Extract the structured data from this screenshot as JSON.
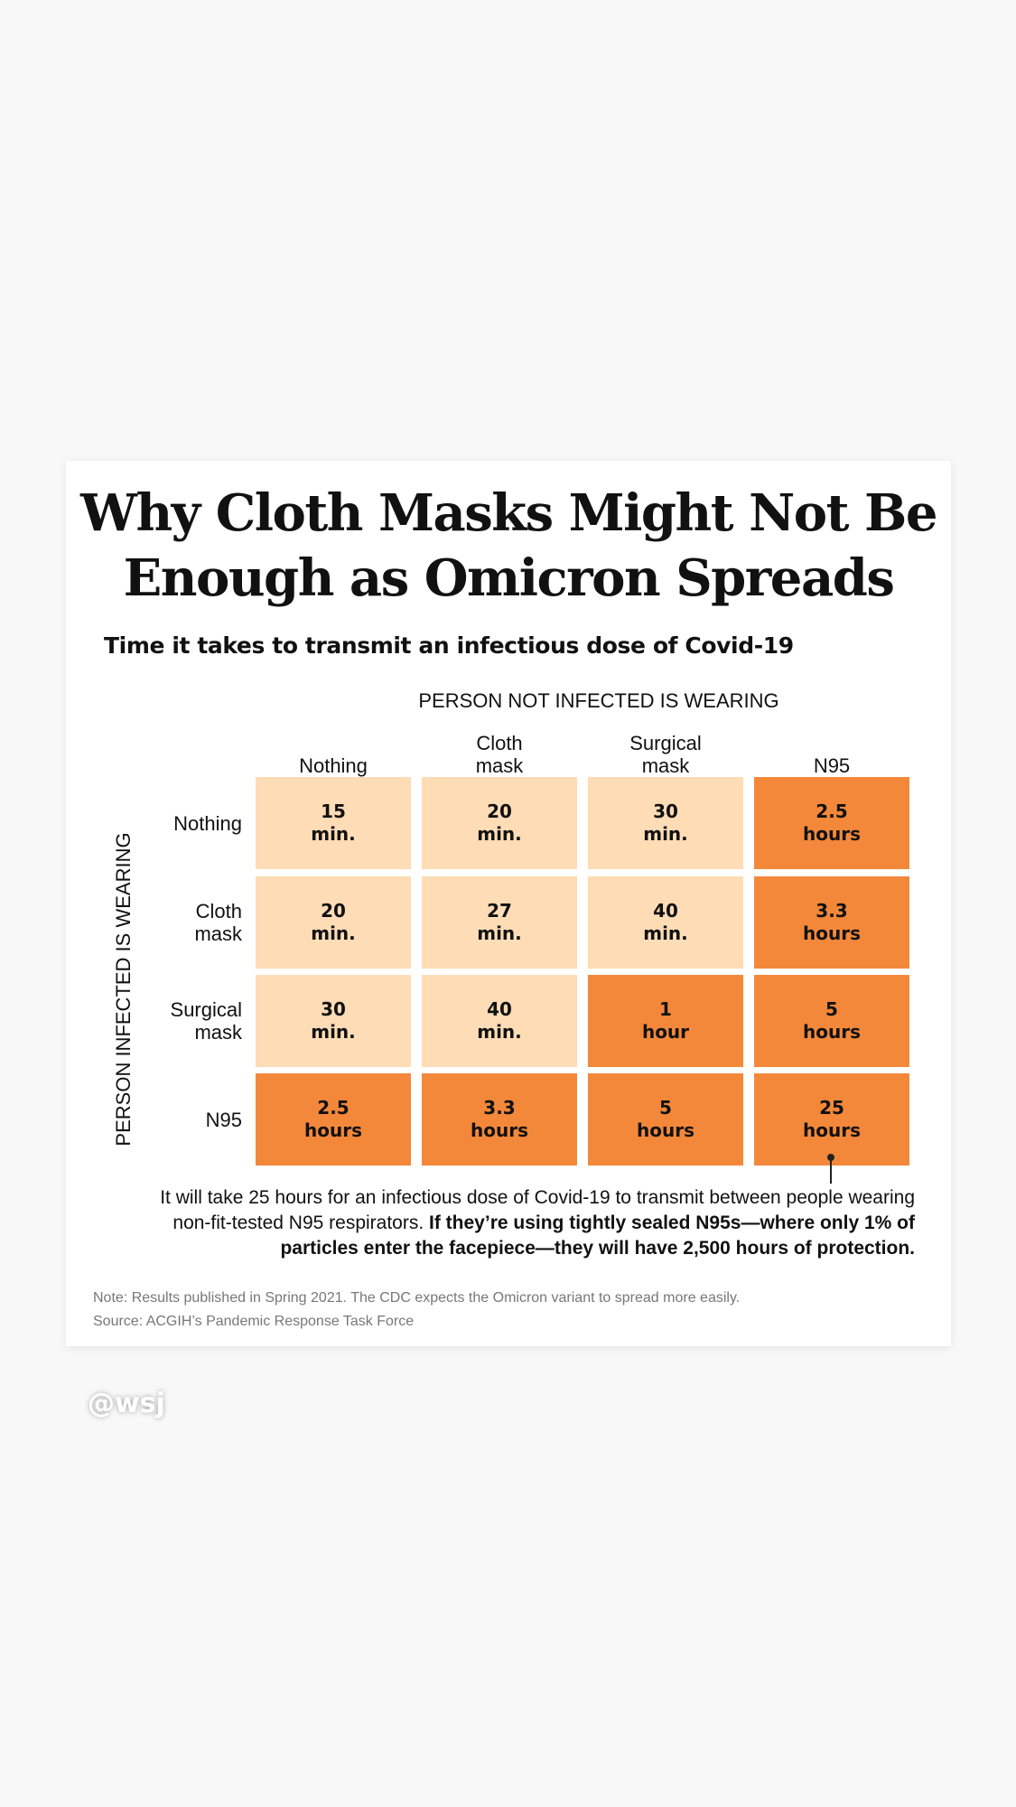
{
  "title_line1": "Why Cloth Masks Might Not Be",
  "title_line2": "Enough as Omicron Spreads",
  "subtitle": "Time it takes to transmit an infectious dose of Covid-19",
  "colors": {
    "light_cell": "#fddcb6",
    "dark_cell": "#f4883a"
  },
  "chart_data": {
    "type": "heatmap",
    "x_axis_label": "PERSON NOT INFECTED IS WEARING",
    "y_axis_label": "PERSON INFECTED IS WEARING",
    "columns": [
      "Nothing",
      "Cloth\nmask",
      "Surgical\nmask",
      "N95"
    ],
    "rows": [
      "Nothing",
      "Cloth\nmask",
      "Surgical\nmask",
      "N95"
    ],
    "cells": [
      [
        {
          "value": "15",
          "unit": "min."
        },
        {
          "value": "20",
          "unit": "min."
        },
        {
          "value": "30",
          "unit": "min."
        },
        {
          "value": "2.5",
          "unit": "hours"
        }
      ],
      [
        {
          "value": "20",
          "unit": "min."
        },
        {
          "value": "27",
          "unit": "min."
        },
        {
          "value": "40",
          "unit": "min."
        },
        {
          "value": "3.3",
          "unit": "hours"
        }
      ],
      [
        {
          "value": "30",
          "unit": "min."
        },
        {
          "value": "40",
          "unit": "min."
        },
        {
          "value": "1",
          "unit": "hour"
        },
        {
          "value": "5",
          "unit": "hours"
        }
      ],
      [
        {
          "value": "2.5",
          "unit": "hours"
        },
        {
          "value": "3.3",
          "unit": "hours"
        },
        {
          "value": "5",
          "unit": "hours"
        },
        {
          "value": "25",
          "unit": "hours"
        }
      ]
    ],
    "minutes": [
      [
        15,
        20,
        30,
        150
      ],
      [
        20,
        27,
        40,
        198
      ],
      [
        30,
        40,
        60,
        300
      ],
      [
        150,
        198,
        300,
        1500
      ]
    ]
  },
  "annotation_regular": "It will take 25 hours for an infectious dose of Covid-19 to transmit between people wearing non-fit-tested N95 respirators. ",
  "annotation_bold": "If they’re using tightly sealed N95s—where only 1% of particles enter the facepiece—they will have 2,500 hours of protection.",
  "note": "Note: Results published in Spring 2021. The CDC expects the Omicron variant to spread more easily.",
  "source": "Source: ACGIH’s Pandemic Response Task Force",
  "watermark": "@wsj"
}
